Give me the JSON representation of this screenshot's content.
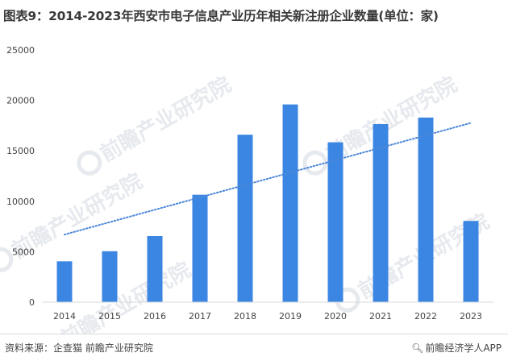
{
  "title": "图表9：2014-2023年西安市电子信息产业历年相关新注册企业数量(单位：家)",
  "footer": {
    "source": "资料来源：企查猫 前瞻产业研究院",
    "brand": "前瞻经济学人APP",
    "brand_icon": "search-icon"
  },
  "watermark": "前瞻产业研究院",
  "colors": {
    "bar": "#3c86e3",
    "trend": "#4a86d8",
    "grid": "#d9d9d9"
  },
  "chart_data": {
    "type": "bar",
    "categories": [
      "2014",
      "2015",
      "2016",
      "2017",
      "2018",
      "2019",
      "2020",
      "2021",
      "2022",
      "2023"
    ],
    "series": [
      {
        "values": [
          4050,
          5050,
          6550,
          10650,
          16600,
          19600,
          15850,
          17650,
          18300,
          8050
        ]
      }
    ],
    "trendline": {
      "type": "linear",
      "style": "dotted"
    },
    "ylim": [
      0,
      25000
    ],
    "yticks": [
      "0",
      "5000",
      "10000",
      "15000",
      "20000",
      "25000"
    ],
    "xlabel": "",
    "ylabel": "",
    "grid": false,
    "legend": "none"
  }
}
